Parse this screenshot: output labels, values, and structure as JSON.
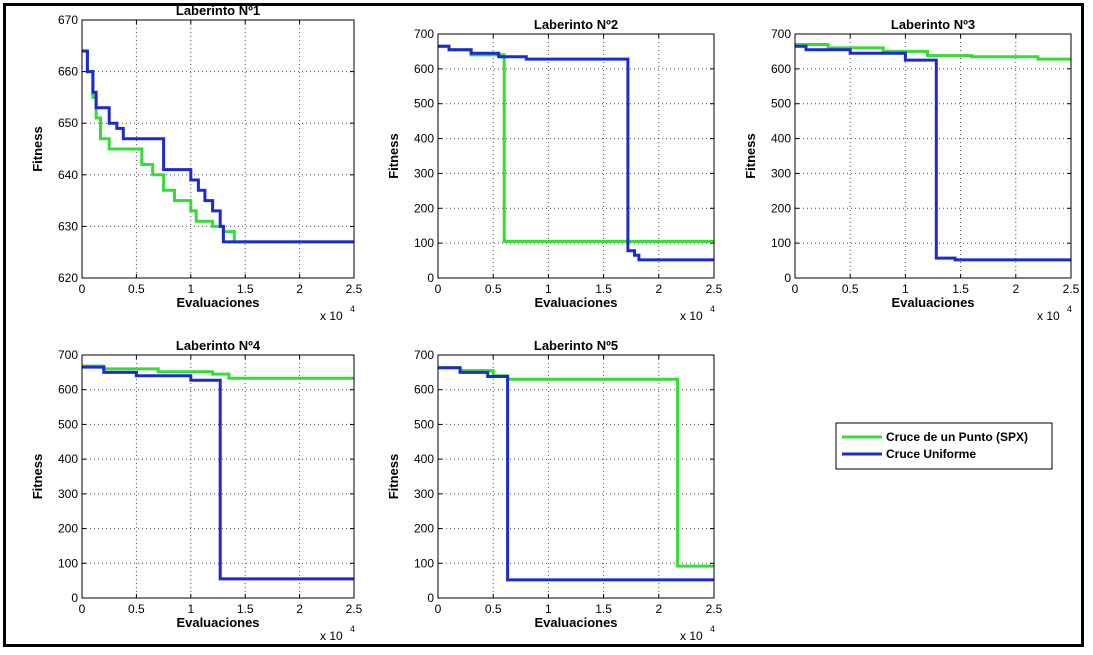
{
  "chart_data": [
    {
      "type": "line",
      "title": "Laberinto Nº1",
      "xlabel": "Evaluaciones",
      "ylabel": "Fitness",
      "x_multiplier": "x 10",
      "x_multiplier_exp": "4",
      "xlim": [
        0,
        2.5
      ],
      "ylim": [
        620,
        670
      ],
      "xticks": [
        "0",
        "0.5",
        "1",
        "1.5",
        "2",
        "2.5"
      ],
      "yticks": [
        "620",
        "630",
        "640",
        "650",
        "660",
        "670"
      ],
      "grid": true,
      "series": [
        {
          "name": "Cruce de un Punto (SPX)",
          "color": "#33dd33",
          "x": [
            0,
            0.05,
            0.05,
            0.1,
            0.1,
            0.13,
            0.13,
            0.17,
            0.17,
            0.25,
            0.25,
            0.55,
            0.55,
            0.65,
            0.65,
            0.75,
            0.75,
            0.85,
            0.85,
            1.0,
            1.0,
            1.05,
            1.05,
            1.2,
            1.2,
            1.3,
            1.3,
            1.4,
            1.4,
            2.5
          ],
          "y": [
            664,
            664,
            660,
            660,
            655,
            655,
            651,
            651,
            647,
            647,
            645,
            645,
            642,
            642,
            640,
            640,
            637,
            637,
            635,
            635,
            633,
            633,
            631,
            631,
            630,
            630,
            629,
            629,
            627,
            627
          ]
        },
        {
          "name": "Cruce Uniforme",
          "color": "#1c2ad0",
          "x": [
            0,
            0.05,
            0.05,
            0.1,
            0.1,
            0.13,
            0.13,
            0.25,
            0.25,
            0.32,
            0.32,
            0.38,
            0.38,
            0.75,
            0.75,
            1.0,
            1.0,
            1.07,
            1.07,
            1.13,
            1.13,
            1.2,
            1.2,
            1.27,
            1.27,
            1.3,
            1.3,
            2.5
          ],
          "y": [
            664,
            664,
            660,
            660,
            656,
            656,
            653,
            653,
            650,
            650,
            649,
            649,
            647,
            647,
            641,
            641,
            639,
            639,
            637,
            637,
            635,
            635,
            633,
            633,
            630,
            630,
            627,
            627
          ]
        }
      ]
    },
    {
      "type": "line",
      "title": "Laberinto Nº2",
      "xlabel": "Evaluaciones",
      "ylabel": "Fitness",
      "x_multiplier": "x 10",
      "x_multiplier_exp": "4",
      "xlim": [
        0,
        2.5
      ],
      "ylim": [
        0,
        700
      ],
      "xticks": [
        "0",
        "0.5",
        "1",
        "1.5",
        "2",
        "2.5"
      ],
      "yticks": [
        "0",
        "100",
        "200",
        "300",
        "400",
        "500",
        "600",
        "700"
      ],
      "grid": true,
      "series": [
        {
          "name": "Cruce de un Punto (SPX)",
          "color": "#33dd33",
          "x": [
            0,
            0.1,
            0.1,
            0.3,
            0.3,
            0.6,
            0.6,
            2.5
          ],
          "y": [
            665,
            665,
            655,
            655,
            640,
            640,
            105,
            105
          ]
        },
        {
          "name": "Cruce Uniforme",
          "color": "#1c2ad0",
          "x": [
            0,
            0.1,
            0.1,
            0.3,
            0.3,
            0.55,
            0.55,
            0.8,
            0.8,
            1.72,
            1.72,
            1.78,
            1.78,
            1.82,
            1.82,
            2.5
          ],
          "y": [
            665,
            665,
            655,
            655,
            645,
            645,
            635,
            635,
            628,
            628,
            78,
            78,
            65,
            65,
            52,
            52
          ]
        }
      ]
    },
    {
      "type": "line",
      "title": "Laberinto Nº3",
      "xlabel": "Evaluaciones",
      "ylabel": "Fitness",
      "x_multiplier": "x 10",
      "x_multiplier_exp": "4",
      "xlim": [
        0,
        2.5
      ],
      "ylim": [
        0,
        700
      ],
      "xticks": [
        "0",
        "0.5",
        "1",
        "1.5",
        "2",
        "2.5"
      ],
      "yticks": [
        "0",
        "100",
        "200",
        "300",
        "400",
        "500",
        "600",
        "700"
      ],
      "grid": true,
      "series": [
        {
          "name": "Cruce de un Punto (SPX)",
          "color": "#33dd33",
          "x": [
            0,
            0.3,
            0.3,
            0.8,
            0.8,
            1.2,
            1.2,
            1.6,
            1.6,
            2.2,
            2.2,
            2.5
          ],
          "y": [
            670,
            670,
            660,
            660,
            650,
            650,
            638,
            638,
            635,
            635,
            628,
            628
          ]
        },
        {
          "name": "Cruce Uniforme",
          "color": "#1c2ad0",
          "x": [
            0,
            0.1,
            0.1,
            0.5,
            0.5,
            1.0,
            1.0,
            1.28,
            1.28,
            1.45,
            1.45,
            2.5
          ],
          "y": [
            665,
            665,
            655,
            655,
            645,
            645,
            625,
            625,
            57,
            57,
            52,
            52
          ]
        }
      ]
    },
    {
      "type": "line",
      "title": "Laberinto Nº4",
      "xlabel": "Evaluaciones",
      "ylabel": "Fitness",
      "x_multiplier": "x 10",
      "x_multiplier_exp": "4",
      "xlim": [
        0,
        2.5
      ],
      "ylim": [
        0,
        700
      ],
      "xticks": [
        "0",
        "0.5",
        "1",
        "1.5",
        "2",
        "2.5"
      ],
      "yticks": [
        "0",
        "100",
        "200",
        "300",
        "400",
        "500",
        "600",
        "700"
      ],
      "grid": true,
      "series": [
        {
          "name": "Cruce de un Punto (SPX)",
          "color": "#33dd33",
          "x": [
            0,
            0.2,
            0.2,
            0.7,
            0.7,
            1.2,
            1.2,
            1.35,
            1.35,
            2.5
          ],
          "y": [
            668,
            668,
            660,
            660,
            652,
            652,
            645,
            645,
            633,
            633
          ]
        },
        {
          "name": "Cruce Uniforme",
          "color": "#1c2ad0",
          "x": [
            0,
            0.2,
            0.2,
            0.5,
            0.5,
            1.0,
            1.0,
            1.27,
            1.27,
            2.5
          ],
          "y": [
            665,
            665,
            650,
            650,
            640,
            640,
            627,
            627,
            55,
            55
          ]
        }
      ]
    },
    {
      "type": "line",
      "title": "Laberinto Nº5",
      "xlabel": "Evaluaciones",
      "ylabel": "Fitness",
      "x_multiplier": "x 10",
      "x_multiplier_exp": "4",
      "xlim": [
        0,
        2.5
      ],
      "ylim": [
        0,
        700
      ],
      "xticks": [
        "0",
        "0.5",
        "1",
        "1.5",
        "2",
        "2.5"
      ],
      "yticks": [
        "0",
        "100",
        "200",
        "300",
        "400",
        "500",
        "600",
        "700"
      ],
      "grid": true,
      "series": [
        {
          "name": "Cruce de un Punto (SPX)",
          "color": "#33dd33",
          "x": [
            0,
            0.2,
            0.2,
            0.5,
            0.5,
            0.63,
            0.63,
            2.17,
            2.17,
            2.5
          ],
          "y": [
            663,
            663,
            655,
            655,
            640,
            640,
            630,
            630,
            92,
            92
          ]
        },
        {
          "name": "Cruce Uniforme",
          "color": "#1c2ad0",
          "x": [
            0,
            0.2,
            0.2,
            0.45,
            0.45,
            0.63,
            0.63,
            2.5
          ],
          "y": [
            663,
            663,
            650,
            650,
            638,
            638,
            52,
            52
          ]
        }
      ]
    }
  ],
  "legend": {
    "placement": "right",
    "items": [
      {
        "label": "Cruce de un Punto (SPX)",
        "color": "#33dd33"
      },
      {
        "label": "Cruce Uniforme",
        "color": "#1c2ad0"
      }
    ]
  }
}
